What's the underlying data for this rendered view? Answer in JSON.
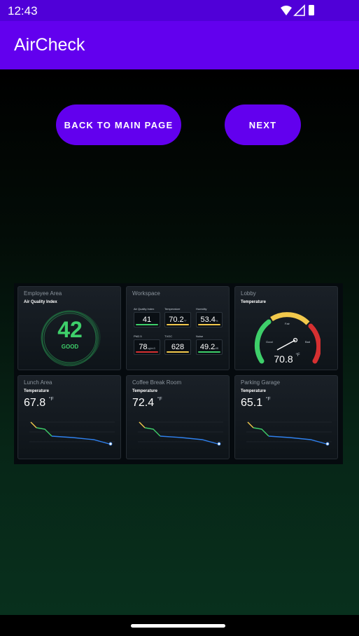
{
  "status_bar": {
    "time": "12:43",
    "icons": [
      "wifi-icon",
      "signal-icon",
      "battery-icon"
    ]
  },
  "app_bar": {
    "title": "AirCheck"
  },
  "buttons": {
    "back_label": "BACK TO MAIN PAGE",
    "next_label": "NEXT"
  },
  "colors": {
    "status_bar": "#5000d8",
    "app_bar": "#6200ee",
    "button": "#6200ee",
    "good": "#3ecf6a",
    "warn": "#f2c94c",
    "bad": "#d63031",
    "line": "#2f80ed"
  },
  "dashboard": {
    "employee_area": {
      "title": "Employee Area",
      "subtitle": "Air Quality Index",
      "value": "42",
      "status": "GOOD"
    },
    "workspace": {
      "title": "Workspace",
      "metrics": [
        {
          "label": "Air Quality Index",
          "value": "41",
          "unit": "",
          "status": "good"
        },
        {
          "label": "Temperature",
          "value": "70.2",
          "unit": "°F",
          "status": "warn"
        },
        {
          "label": "Humidity",
          "value": "53.4",
          "unit": "%",
          "status": "warn"
        },
        {
          "label": "PM2.5",
          "value": "78",
          "unit": "ug/m3",
          "status": "bad"
        },
        {
          "label": "TVOC",
          "value": "628",
          "unit": "",
          "status": "warn"
        },
        {
          "label": "Noise",
          "value": "49.2",
          "unit": "dB",
          "status": "good"
        }
      ]
    },
    "lobby": {
      "title": "Lobby",
      "subtitle": "Temperature",
      "value": "70.8",
      "unit": "°F",
      "gauge_labels": [
        "Good",
        "Fair",
        "Bad"
      ]
    },
    "lunch_area": {
      "title": "Lunch Area",
      "subtitle": "Temperature",
      "value": "67.8",
      "unit": "°F"
    },
    "coffee_break_room": {
      "title": "Coffee Break Room",
      "subtitle": "Temperature",
      "value": "72.4",
      "unit": "°F"
    },
    "parking_garage": {
      "title": "Parking Garage",
      "subtitle": "Temperature",
      "value": "65.1",
      "unit": "°F"
    }
  }
}
